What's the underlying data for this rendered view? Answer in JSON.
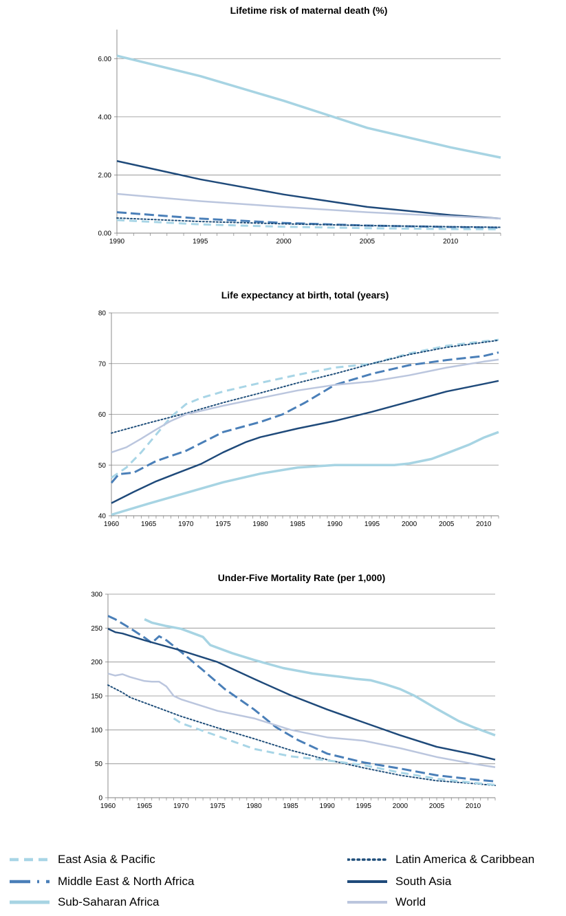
{
  "colors": {
    "east_asia_pacific": "#a8d5e6",
    "middle_east_north_africa": "#4a7fb8",
    "sub_saharan_africa": "#a7d4e3",
    "latin_america_caribbean": "#1f4e7a",
    "south_asia": "#1f4a7a",
    "world": "#bbc6de"
  },
  "legend": [
    {
      "name": "East Asia & Pacific",
      "style": "dash",
      "color_key": "east_asia_pacific"
    },
    {
      "name": "Latin America & Caribbean",
      "style": "dot",
      "color_key": "latin_america_caribbean"
    },
    {
      "name": "Middle East & North Africa",
      "style": "dashdot",
      "color_key": "middle_east_north_africa"
    },
    {
      "name": "South Asia",
      "style": "solid-dark",
      "color_key": "south_asia"
    },
    {
      "name": "Sub-Saharan Africa",
      "style": "solid-thick",
      "color_key": "sub_saharan_africa"
    },
    {
      "name": "World",
      "style": "solid",
      "color_key": "world"
    }
  ],
  "chart_data": [
    {
      "type": "line",
      "title": "Lifetime risk of maternal death (%)",
      "xlabel": "",
      "ylabel": "",
      "xlim": [
        1990,
        2013
      ],
      "ylim": [
        0,
        7
      ],
      "yticks": [
        0,
        2,
        4,
        6
      ],
      "ytick_labels": [
        "0.00",
        "2.00",
        "4.00",
        "6.00"
      ],
      "xticks": [
        1990,
        1995,
        2000,
        2005,
        2010
      ],
      "grid": true,
      "series": [
        {
          "name": "Sub-Saharan Africa",
          "x": [
            1990,
            1995,
            2000,
            2005,
            2010,
            2013
          ],
          "values": [
            6.1,
            5.4,
            4.55,
            3.62,
            2.95,
            2.6
          ]
        },
        {
          "name": "South Asia",
          "x": [
            1990,
            1995,
            2000,
            2005,
            2010,
            2013
          ],
          "values": [
            2.48,
            1.85,
            1.33,
            0.9,
            0.62,
            0.5
          ]
        },
        {
          "name": "World",
          "x": [
            1990,
            1995,
            2000,
            2005,
            2010,
            2013
          ],
          "values": [
            1.35,
            1.1,
            0.9,
            0.72,
            0.58,
            0.5
          ]
        },
        {
          "name": "Middle East & North Africa",
          "x": [
            1990,
            1995,
            2000,
            2005,
            2010,
            2013
          ],
          "values": [
            0.72,
            0.5,
            0.35,
            0.26,
            0.21,
            0.19
          ]
        },
        {
          "name": "Latin America & Caribbean",
          "x": [
            1990,
            1995,
            2000,
            2005,
            2010,
            2013
          ],
          "values": [
            0.52,
            0.4,
            0.32,
            0.26,
            0.22,
            0.2
          ]
        },
        {
          "name": "East Asia & Pacific",
          "x": [
            1990,
            1995,
            2000,
            2005,
            2010,
            2013
          ],
          "values": [
            0.45,
            0.3,
            0.22,
            0.17,
            0.14,
            0.13
          ]
        }
      ]
    },
    {
      "type": "line",
      "title": "Life expectancy at birth, total (years)",
      "xlabel": "",
      "ylabel": "",
      "xlim": [
        1960,
        2012
      ],
      "ylim": [
        40,
        80
      ],
      "yticks": [
        40,
        50,
        60,
        70,
        80
      ],
      "ytick_labels": [
        "40",
        "50",
        "60",
        "70",
        "80"
      ],
      "xticks": [
        1960,
        1965,
        1970,
        1975,
        1980,
        1985,
        1990,
        1995,
        2000,
        2005,
        2010
      ],
      "grid": true,
      "series": [
        {
          "name": "East Asia & Pacific",
          "x": [
            1960,
            1962,
            1964,
            1966,
            1968,
            1970,
            1972,
            1975,
            1980,
            1985,
            1990,
            1995,
            2000,
            2005,
            2010,
            2012
          ],
          "values": [
            47.5,
            49.5,
            52.5,
            56,
            59.5,
            62,
            63.2,
            64.5,
            66.2,
            67.8,
            69.2,
            70,
            72,
            73.5,
            74.4,
            74.7
          ]
        },
        {
          "name": "Middle East & North Africa",
          "x": [
            1960,
            1961,
            1963,
            1966,
            1970,
            1975,
            1980,
            1983,
            1986,
            1990,
            1995,
            2000,
            2005,
            2010,
            2012
          ],
          "values": [
            46.5,
            48.2,
            48.5,
            50.8,
            52.8,
            56.5,
            58.5,
            60,
            62.3,
            65.8,
            68,
            69.7,
            70.7,
            71.5,
            72.2
          ]
        },
        {
          "name": "Sub-Saharan Africa",
          "x": [
            1960,
            1965,
            1970,
            1975,
            1980,
            1985,
            1990,
            1995,
            1998,
            2000,
            2003,
            2005,
            2008,
            2010,
            2012
          ],
          "values": [
            40.2,
            42.4,
            44.5,
            46.6,
            48.3,
            49.5,
            50,
            50,
            50,
            50.3,
            51.2,
            52.3,
            54,
            55.4,
            56.5
          ]
        },
        {
          "name": "Latin America & Caribbean",
          "x": [
            1960,
            1965,
            1970,
            1975,
            1980,
            1985,
            1990,
            1995,
            2000,
            2005,
            2010,
            2012
          ],
          "values": [
            56.3,
            58.3,
            60.2,
            62.3,
            64.2,
            66.2,
            68,
            70,
            71.8,
            73.2,
            74.2,
            74.6
          ]
        },
        {
          "name": "South Asia",
          "x": [
            1960,
            1963,
            1966,
            1969,
            1972,
            1975,
            1978,
            1980,
            1985,
            1990,
            1995,
            2000,
            2005,
            2010,
            2012
          ],
          "values": [
            42.5,
            44.7,
            46.8,
            48.5,
            50.2,
            52.5,
            54.5,
            55.5,
            57.2,
            58.7,
            60.5,
            62.5,
            64.5,
            66,
            66.6
          ]
        },
        {
          "name": "World",
          "x": [
            1960,
            1962,
            1964,
            1966,
            1968,
            1970,
            1975,
            1980,
            1985,
            1990,
            1995,
            2000,
            2005,
            2010,
            2012
          ],
          "values": [
            52.5,
            53.5,
            55.2,
            57,
            58.7,
            60,
            61.7,
            63.2,
            64.7,
            65.8,
            66.5,
            67.7,
            69.2,
            70.4,
            70.8
          ]
        }
      ]
    },
    {
      "type": "line",
      "title": "Under-Five Mortality Rate (per 1,000)",
      "xlabel": "",
      "ylabel": "",
      "xlim": [
        1960,
        2013
      ],
      "ylim": [
        0,
        300
      ],
      "yticks": [
        0,
        50,
        100,
        150,
        200,
        250,
        300
      ],
      "ytick_labels": [
        "0",
        "50",
        "100",
        "150",
        "200",
        "250",
        "300"
      ],
      "xticks": [
        1960,
        1965,
        1970,
        1975,
        1980,
        1985,
        1990,
        1995,
        2000,
        2005,
        2010
      ],
      "grid": true,
      "series": [
        {
          "name": "Sub-Saharan Africa",
          "x": [
            1965,
            1966,
            1968,
            1970,
            1973,
            1974,
            1977,
            1980,
            1984,
            1988,
            1992,
            1994,
            1996,
            1998,
            2000,
            2002,
            2005,
            2008,
            2010,
            2013
          ],
          "values": [
            263,
            258,
            253,
            249,
            237,
            225,
            213,
            203,
            191,
            183,
            178,
            175,
            173,
            167,
            160,
            150,
            131,
            113,
            104,
            92
          ]
        },
        {
          "name": "Middle East & North Africa",
          "x": [
            1960,
            1961,
            1963,
            1965,
            1966,
            1967,
            1968,
            1970,
            1973,
            1976,
            1980,
            1983,
            1986,
            1990,
            1995,
            2000,
            2005,
            2010,
            2013
          ],
          "values": [
            268,
            263,
            250,
            236,
            228,
            238,
            232,
            215,
            188,
            160,
            130,
            104,
            85,
            65,
            52,
            43,
            33,
            27,
            24
          ]
        },
        {
          "name": "South Asia",
          "x": [
            1960,
            1961,
            1962,
            1965,
            1970,
            1975,
            1980,
            1985,
            1990,
            1995,
            2000,
            2005,
            2010,
            2013
          ],
          "values": [
            249,
            244,
            242,
            232,
            217,
            200,
            175,
            151,
            130,
            111,
            92,
            75,
            64,
            56
          ]
        },
        {
          "name": "World",
          "x": [
            1960,
            1961,
            1962,
            1963,
            1965,
            1966,
            1967,
            1968,
            1969,
            1970,
            1975,
            1980,
            1985,
            1990,
            1995,
            2000,
            2005,
            2010,
            2013
          ],
          "values": [
            183,
            180,
            182,
            178,
            172,
            171,
            171,
            164,
            150,
            145,
            128,
            117,
            100,
            89,
            84,
            73,
            60,
            50,
            45
          ]
        },
        {
          "name": "Latin America & Caribbean",
          "x": [
            1960,
            1962,
            1963,
            1965,
            1968,
            1970,
            1975,
            1980,
            1985,
            1990,
            1995,
            2000,
            2005,
            2010,
            2013
          ],
          "values": [
            166,
            155,
            148,
            140,
            128,
            120,
            103,
            87,
            70,
            56,
            44,
            33,
            25,
            21,
            18
          ]
        },
        {
          "name": "East Asia & Pacific",
          "x": [
            1969,
            1970,
            1975,
            1980,
            1985,
            1990,
            1995,
            2000,
            2005,
            2010,
            2013
          ],
          "values": [
            117,
            110,
            91,
            72,
            61,
            55,
            48,
            37,
            28,
            22,
            19
          ]
        }
      ]
    }
  ]
}
